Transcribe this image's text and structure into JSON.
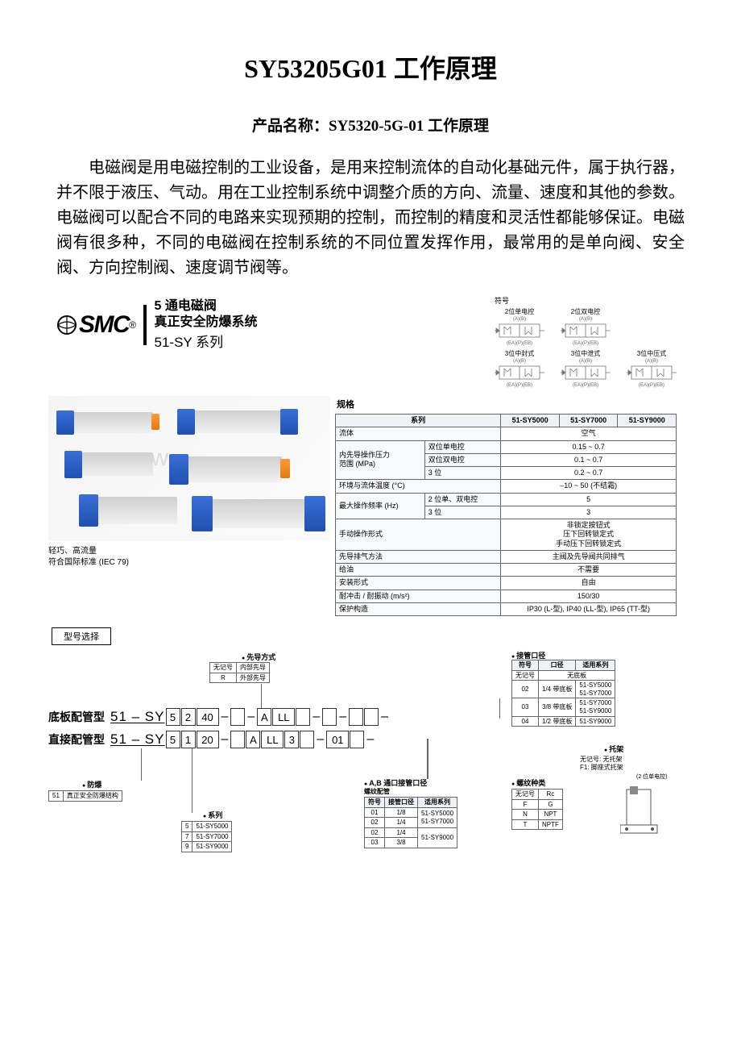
{
  "title": "SY53205G01 工作原理",
  "subtitle": "产品名称：SY5320-5G-01 工作原理",
  "paragraph": "电磁阀是用电磁控制的工业设备，是用来控制流体的自动化基础元件，属于执行器，并不限于液压、气动。用在工业控制系统中调整介质的方向、流量、速度和其他的参数。电磁阀可以配合不同的电路来实现预期的控制，而控制的精度和灵活性都能够保证。电磁阀有很多种，不同的电磁阀在控制系统的不同位置发挥作用，最常用的是单向阀、安全阀、方向控制阀、速度调节阀等。",
  "catalog": {
    "logo": "SMC",
    "logo_r": "®",
    "prod_line1": "5 通电磁阀",
    "prod_line2": "真正安全防爆系统",
    "prod_line3": "51-SY 系列",
    "sym_header": "符号",
    "symbols_row1": [
      "2位单电控",
      "2位双电控"
    ],
    "symbols_row2": [
      "3位中封式",
      "3位中泄式",
      "3位中压式"
    ],
    "tiny_ports_top": "(A)(B)",
    "tiny_ports_bot": "(EA)(P)(EB)",
    "photo_caption1": "轻巧、高流量",
    "photo_caption2": "符合国际标准 (IEC 79)",
    "spec_header": "规格",
    "spec": {
      "col_series": "系列",
      "cols": [
        "51-SY5000",
        "51-SY7000",
        "51-SY9000"
      ],
      "rows": [
        {
          "k": "流体",
          "v": "空气"
        },
        {
          "k": "内先导操作压力\n范围 (MPa)",
          "sub": [
            [
              "双位单电控",
              "0.15 ~ 0.7"
            ],
            [
              "双位双电控",
              "0.1 ~ 0.7"
            ],
            [
              "3 位",
              "0.2 ~ 0.7"
            ]
          ]
        },
        {
          "k": "环境与流体温度 (°C)",
          "v": "–10 ~ 50 (不结霜)"
        },
        {
          "k": "最大操作频率 (Hz)",
          "sub": [
            [
              "2 位单、双电控",
              "5"
            ],
            [
              "3 位",
              "3"
            ]
          ]
        },
        {
          "k": "手动操作形式",
          "v": "非锁定按钮式\n压下回转锁定式\n手动压下回转锁定式"
        },
        {
          "k": "先导排气方法",
          "v": "主阀及先导阀共同排气"
        },
        {
          "k": "给油",
          "v": "不需要"
        },
        {
          "k": "安装形式",
          "v": "自由"
        },
        {
          "k": "耐冲击 / 耐振动 (m/s²)",
          "v": "150/30"
        },
        {
          "k": "保护构造",
          "v": "IP30 (L-型), IP40 (LL-型), IP65 (TT-型)"
        }
      ]
    },
    "model_select": "型号选择",
    "ordering": {
      "row1_label": "底板配管型",
      "row2_label": "直接配管型",
      "prefix": "51 – SY",
      "row1_segs": [
        "5",
        "2",
        "40",
        "",
        "A",
        "LL",
        "",
        "",
        "",
        ""
      ],
      "row2_segs": [
        "5",
        "1",
        "20",
        "",
        "A",
        "LL",
        "3",
        "",
        "01",
        ""
      ],
      "pilot_title": "先导方式",
      "pilot": [
        [
          "无记号",
          "内部先导"
        ],
        [
          "R",
          "外部先导"
        ]
      ],
      "explosion_title": "防爆",
      "explosion": [
        [
          "51",
          "真正安全防爆结构"
        ]
      ],
      "series_title": "系列",
      "series": [
        [
          "5",
          "51-SY5000"
        ],
        [
          "7",
          "51-SY7000"
        ],
        [
          "9",
          "51-SY9000"
        ]
      ],
      "port_size_title": "接管口径",
      "port_size_cols": [
        "符号",
        "口径",
        "适用系列"
      ],
      "port_size": [
        [
          "无记号",
          "无底板",
          ""
        ],
        [
          "02",
          "1/4 带底板",
          "51-SY5000\n51-SY7000"
        ],
        [
          "03",
          "3/8 带底板",
          "51-SY7000\n51-SY9000"
        ],
        [
          "04",
          "1/2 带底板",
          "51-SY9000"
        ]
      ],
      "ab_port_title": "A,B 通口接管口径",
      "ab_sub": "螺纹配管",
      "ab_cols": [
        "符号",
        "接管口径",
        "适用系列"
      ],
      "ab": [
        [
          "01",
          "1/8",
          "51-SY5000"
        ],
        [
          "02",
          "1/4",
          "51-SY7000"
        ],
        [
          "02",
          "1/4",
          "51-SY9000"
        ],
        [
          "03",
          "3/8",
          ""
        ]
      ],
      "thread_title": "螺纹种类",
      "thread": [
        [
          "无记号",
          "Rc"
        ],
        [
          "F",
          "G"
        ],
        [
          "N",
          "NPT"
        ],
        [
          "T",
          "NPTF"
        ]
      ],
      "bracket_title": "托架",
      "bracket_note1": "无记号: 无托架",
      "bracket_note2": "F1: 脚座式托架",
      "bracket_note3": "(2 位单电控)"
    }
  }
}
